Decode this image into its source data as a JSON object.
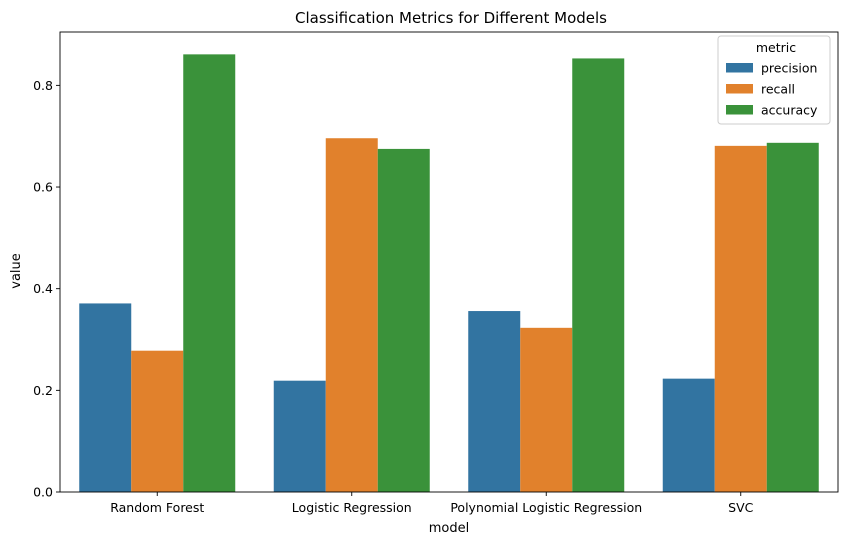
{
  "chart_data": {
    "type": "bar",
    "title": "Classification Metrics for Different Models",
    "xlabel": "model",
    "ylabel": "value",
    "categories": [
      "Random Forest",
      "Logistic Regression",
      "Polynomial Logistic Regression",
      "SVC"
    ],
    "series": [
      {
        "name": "precision",
        "color": "#3274a1",
        "values": [
          0.371,
          0.219,
          0.356,
          0.223
        ]
      },
      {
        "name": "recall",
        "color": "#e1812c",
        "values": [
          0.278,
          0.696,
          0.323,
          0.681
        ]
      },
      {
        "name": "accuracy",
        "color": "#3a923a",
        "values": [
          0.861,
          0.675,
          0.853,
          0.687
        ]
      }
    ],
    "ylim": [
      0,
      0.905
    ],
    "yticks": [
      0.0,
      0.2,
      0.4,
      0.6,
      0.8
    ],
    "ytick_labels": [
      "0.0",
      "0.2",
      "0.4",
      "0.6",
      "0.8"
    ],
    "legend": {
      "title": "metric",
      "placement": "top-right"
    },
    "grid": false
  }
}
